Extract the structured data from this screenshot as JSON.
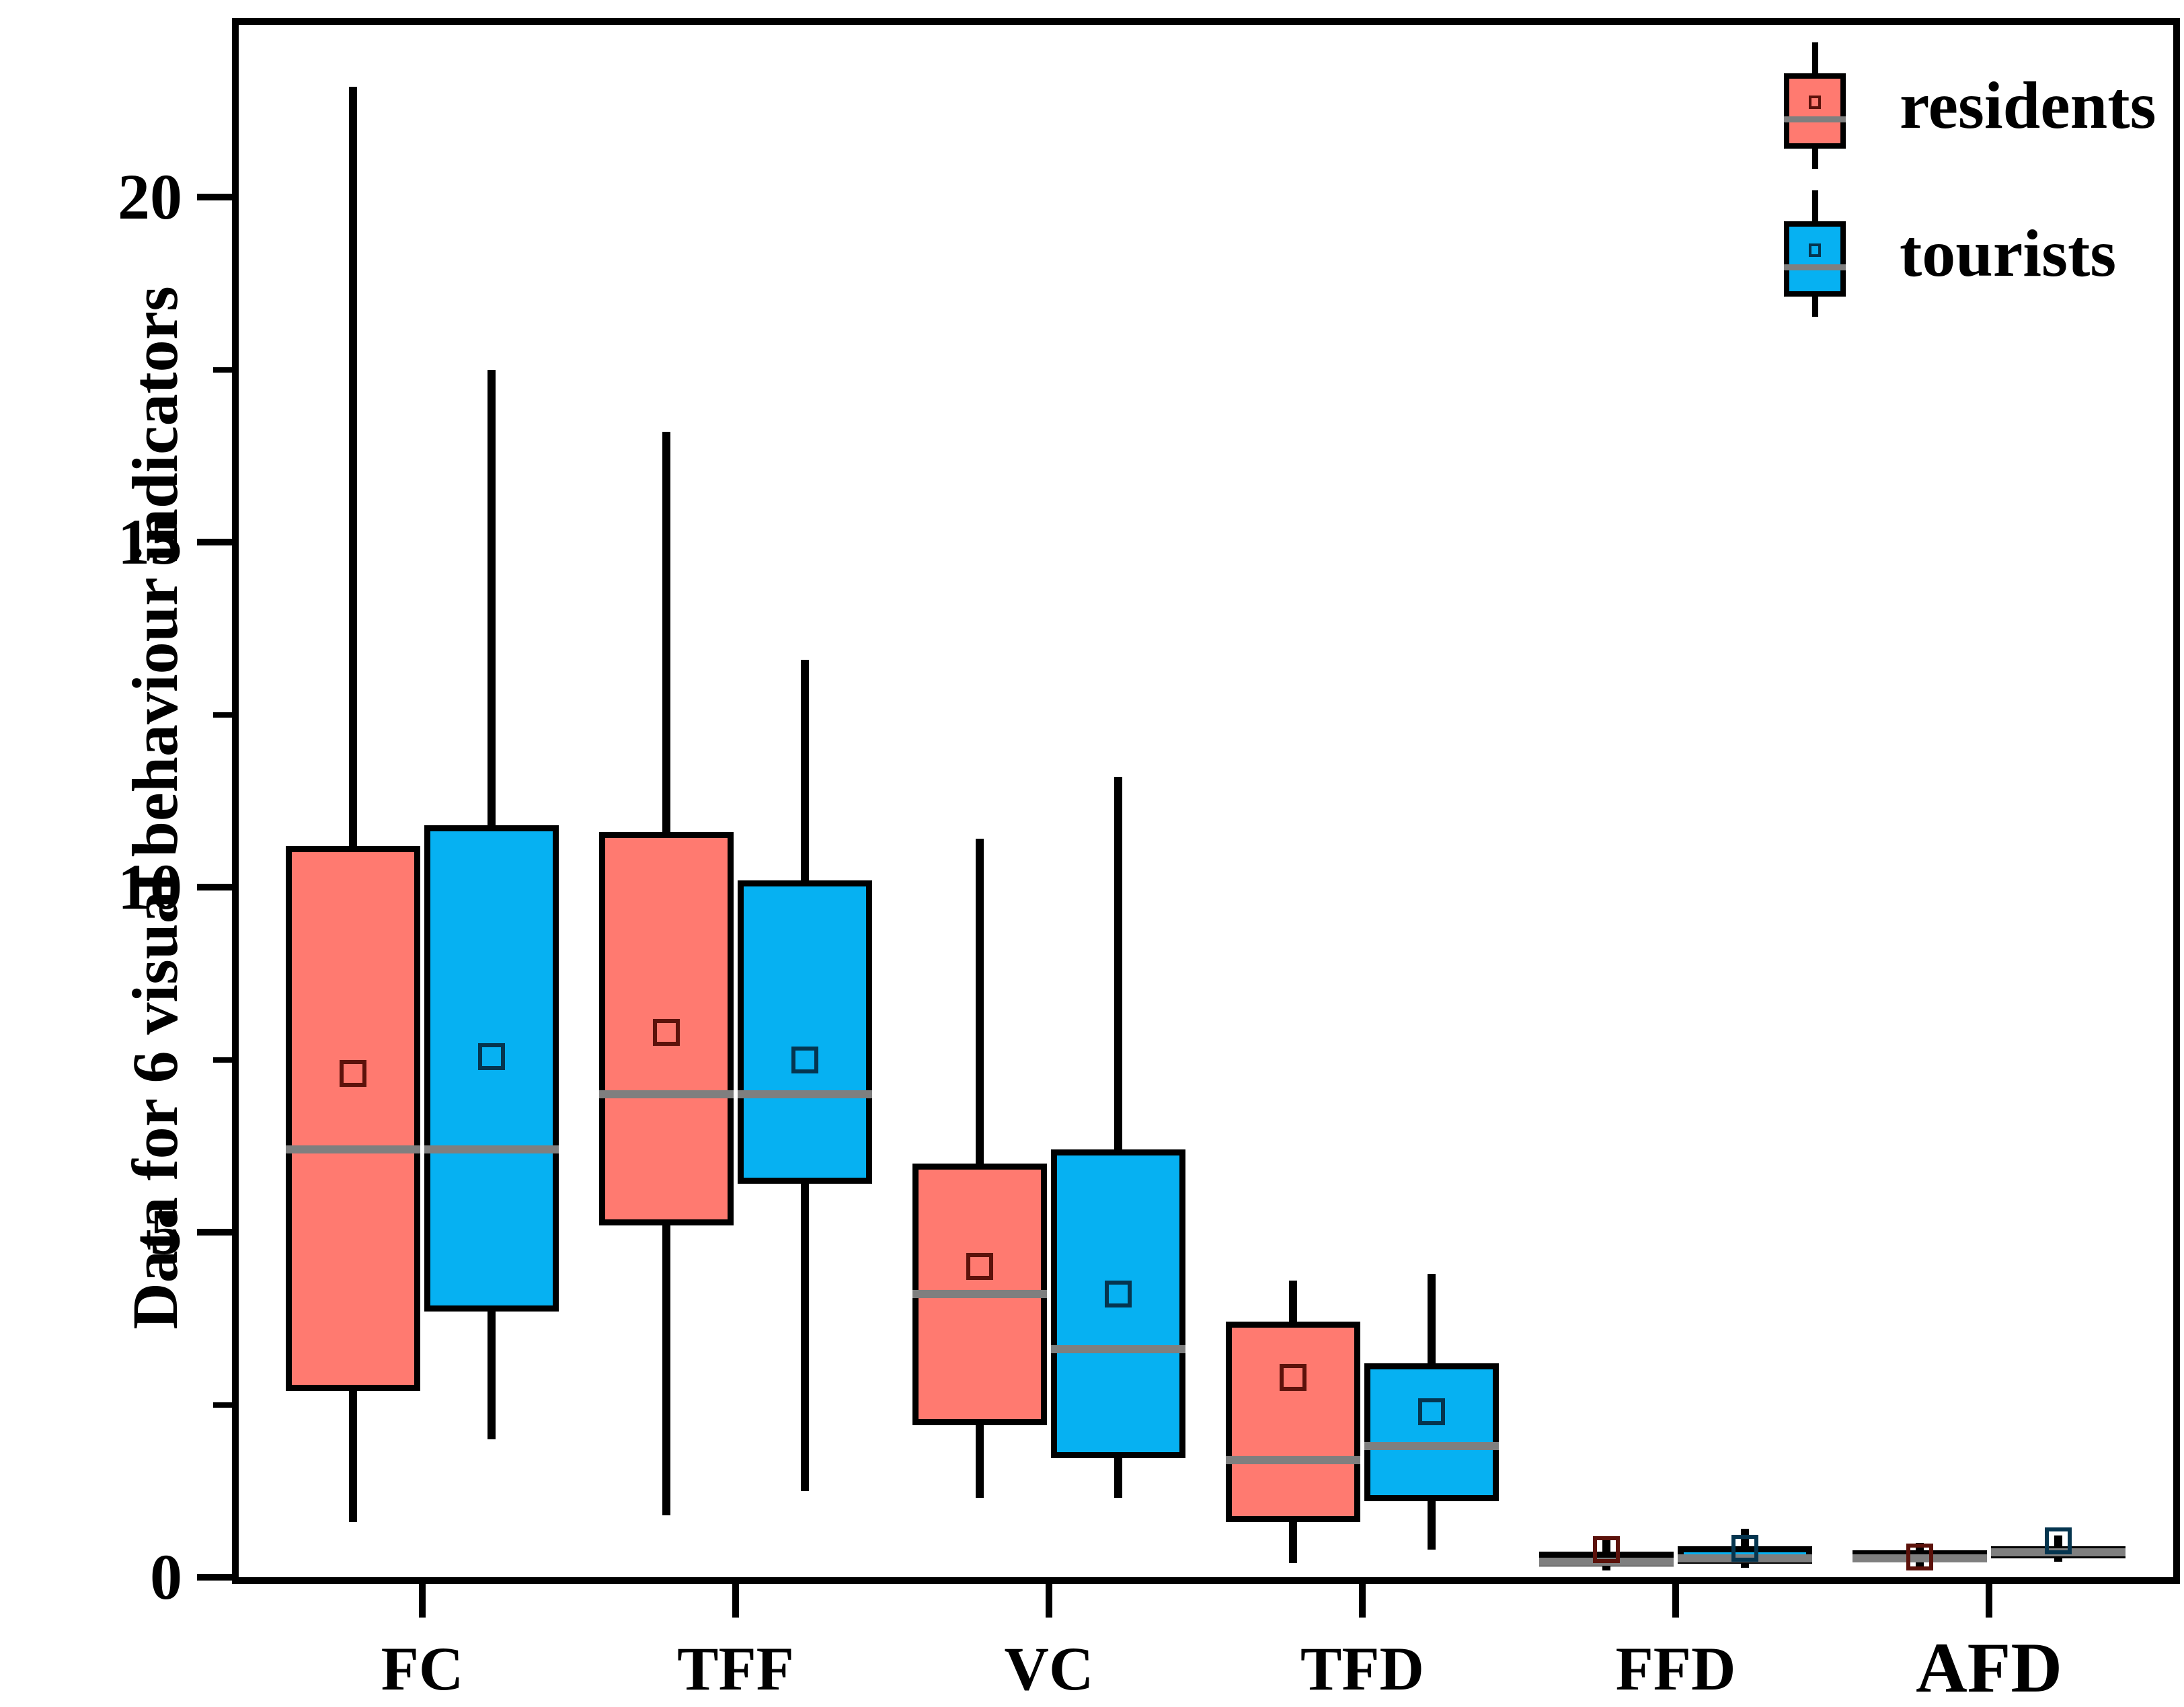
{
  "y_axis": {
    "title": "Data for 6 visual behaviour indicators"
  },
  "legend": {
    "entries": [
      {
        "label": "residents",
        "color": "#FF7A70",
        "marker_border": "#5c120b"
      },
      {
        "label": "tourists",
        "color": "#06B1F2",
        "marker_border": "#05354f"
      }
    ]
  },
  "chart_data": {
    "type": "boxplot",
    "title": "",
    "xlabel": "",
    "ylabel": "Data for 6 visual behaviour indicators",
    "categories": [
      "FC",
      "TFF",
      "VC",
      "TFD",
      "FFD",
      "AFD"
    ],
    "ylim": [
      0,
      22.5
    ],
    "y_major_ticks": [
      0,
      5,
      10,
      15,
      20
    ],
    "y_minor_ticks": [
      2.5,
      7.5,
      12.5,
      17.5
    ],
    "grid": false,
    "legend_position": "top-right",
    "median_color": "#7f7f7f",
    "series": [
      {
        "name": "residents",
        "color": "#FF7A70",
        "marker_border": "#5c120b",
        "boxes": [
          {
            "category": "FC",
            "whisker_low": 0.8,
            "q1": 2.7,
            "median": 6.2,
            "mean": 7.3,
            "q3": 10.6,
            "whisker_high": 21.6
          },
          {
            "category": "TFF",
            "whisker_low": 0.9,
            "q1": 5.1,
            "median": 7.0,
            "mean": 7.9,
            "q3": 10.8,
            "whisker_high": 16.6
          },
          {
            "category": "VC",
            "whisker_low": 1.15,
            "q1": 2.2,
            "median": 4.1,
            "mean": 4.5,
            "q3": 6.0,
            "whisker_high": 10.7
          },
          {
            "category": "TFD",
            "whisker_low": 0.2,
            "q1": 0.8,
            "median": 1.7,
            "mean": 2.9,
            "q3": 3.7,
            "whisker_high": 4.3
          },
          {
            "category": "FFD",
            "whisker_low": 0.1,
            "q1": 0.16,
            "median": 0.22,
            "mean": 0.4,
            "q3": 0.37,
            "whisker_high": 0.55
          },
          {
            "category": "AFD",
            "whisker_low": 0.13,
            "q1": 0.21,
            "median": 0.27,
            "mean": 0.29,
            "q3": 0.39,
            "whisker_high": 0.5
          }
        ]
      },
      {
        "name": "tourists",
        "color": "#06B1F2",
        "marker_border": "#05354f",
        "boxes": [
          {
            "category": "FC",
            "whisker_low": 2.0,
            "q1": 3.85,
            "median": 6.2,
            "mean": 7.55,
            "q3": 10.9,
            "whisker_high": 17.5
          },
          {
            "category": "TFF",
            "whisker_low": 1.25,
            "q1": 5.7,
            "median": 7.0,
            "mean": 7.5,
            "q3": 10.1,
            "whisker_high": 13.3
          },
          {
            "category": "VC",
            "whisker_low": 1.15,
            "q1": 1.73,
            "median": 3.3,
            "mean": 4.1,
            "q3": 6.2,
            "whisker_high": 11.6
          },
          {
            "category": "TFD",
            "whisker_low": 0.4,
            "q1": 1.1,
            "median": 1.9,
            "mean": 2.4,
            "q3": 3.1,
            "whisker_high": 4.4
          },
          {
            "category": "FFD",
            "whisker_low": 0.14,
            "q1": 0.19,
            "median": 0.27,
            "mean": 0.42,
            "q3": 0.45,
            "whisker_high": 0.7
          },
          {
            "category": "AFD",
            "whisker_low": 0.22,
            "q1": 0.27,
            "median": 0.36,
            "mean": 0.53,
            "q3": 0.45,
            "whisker_high": 0.6
          }
        ]
      }
    ]
  }
}
